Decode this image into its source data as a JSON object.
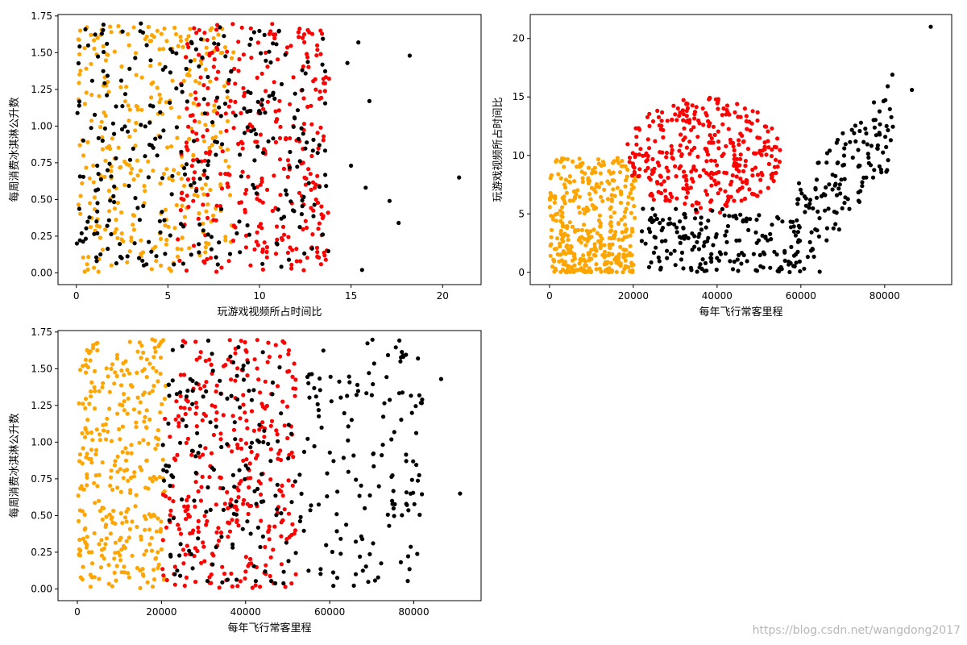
{
  "colors": {
    "largeDoses": "#000000",
    "smallDoses": "#ff0000",
    "didntLike": "#ffa500"
  },
  "watermark": "https://blog.csdn.net/wangdong2017",
  "chart_data": [
    {
      "type": "scatter",
      "xlabel": "玩游戏视频所占时间比",
      "ylabel": "每周消费冰淇淋公升数",
      "xlim": [
        -1,
        22.1
      ],
      "ylim": [
        -0.08,
        1.76
      ],
      "xticks": [
        0,
        5,
        10,
        15,
        20
      ],
      "yticks": [
        0,
        0.25,
        0.5,
        0.75,
        1.0,
        1.25,
        1.5,
        1.75
      ],
      "ytick_labels": [
        "0.00",
        "0.25",
        "0.50",
        "0.75",
        "1.00",
        "1.25",
        "1.50",
        "1.75"
      ],
      "series": [
        {
          "class": "didntLike",
          "x_range": [
            0,
            8.6
          ],
          "y_range": [
            0,
            1.7
          ],
          "n": 330
        },
        {
          "class": "smallDoses",
          "x_range": [
            5.5,
            13.8
          ],
          "y_range": [
            0,
            1.7
          ],
          "n": 330
        },
        {
          "class": "largeDoses",
          "x_range": [
            0,
            13.8
          ],
          "y_range": [
            0,
            1.7
          ],
          "n": 300
        }
      ],
      "outliers": [
        {
          "x": 20.9,
          "y": 0.65
        },
        {
          "x": 18.2,
          "y": 1.48
        },
        {
          "x": 17.6,
          "y": 0.34
        },
        {
          "x": 17.1,
          "y": 0.49
        },
        {
          "x": 16.0,
          "y": 1.17
        },
        {
          "x": 15.8,
          "y": 0.58
        },
        {
          "x": 15.6,
          "y": 0.02
        },
        {
          "x": 15.4,
          "y": 1.57
        },
        {
          "x": 15.0,
          "y": 0.73
        },
        {
          "x": 14.8,
          "y": 1.43
        }
      ]
    },
    {
      "type": "scatter",
      "xlabel": "每年飞行常客里程",
      "ylabel": "玩游戏视频所占时间比",
      "xlim": [
        -4600,
        96000
      ],
      "ylim": [
        -1.05,
        22.05
      ],
      "xticks": [
        0,
        20000,
        40000,
        60000,
        80000
      ],
      "yticks": [
        0,
        5,
        10,
        15,
        20
      ],
      "series": [
        {
          "class": "didntLike",
          "x_range": [
            0,
            20500
          ],
          "y_range": [
            0,
            9.8
          ],
          "n": 400
        },
        {
          "class": "smallDoses",
          "x_range": [
            18000,
            56000
          ],
          "y_range": [
            4.5,
            15
          ],
          "n": 350
        },
        {
          "class": "largeDoses",
          "x_range": [
            22000,
            82000
          ],
          "y_range": [
            0,
            18.2
          ],
          "n": 330
        }
      ],
      "outliers": [
        {
          "x": 91000,
          "y": 21.0
        },
        {
          "x": 86500,
          "y": 15.6
        },
        {
          "x": 64500,
          "y": 0.05
        }
      ]
    },
    {
      "type": "scatter",
      "xlabel": "每年飞行常客里程",
      "ylabel": "每周消费冰淇淋公升数",
      "xlim": [
        -4600,
        96000
      ],
      "ylim": [
        -0.08,
        1.76
      ],
      "xticks": [
        0,
        20000,
        40000,
        60000,
        80000
      ],
      "yticks": [
        0,
        0.25,
        0.5,
        0.75,
        1.0,
        1.25,
        1.5,
        1.75
      ],
      "ytick_labels": [
        "0.00",
        "0.25",
        "0.50",
        "0.75",
        "1.00",
        "1.25",
        "1.50",
        "1.75"
      ],
      "series": [
        {
          "class": "didntLike",
          "x_range": [
            0,
            21000
          ],
          "y_range": [
            0,
            1.7
          ],
          "n": 330
        },
        {
          "class": "smallDoses",
          "x_range": [
            20000,
            52000
          ],
          "y_range": [
            0,
            1.7
          ],
          "n": 330
        },
        {
          "class": "largeDoses",
          "x_range": [
            20000,
            82000
          ],
          "y_range": [
            0,
            1.7
          ],
          "n": 300
        }
      ],
      "outliers": [
        {
          "x": 91000,
          "y": 0.65
        },
        {
          "x": 86500,
          "y": 1.43
        },
        {
          "x": 82000,
          "y": 1.29
        },
        {
          "x": 81000,
          "y": 1.57
        }
      ]
    }
  ]
}
